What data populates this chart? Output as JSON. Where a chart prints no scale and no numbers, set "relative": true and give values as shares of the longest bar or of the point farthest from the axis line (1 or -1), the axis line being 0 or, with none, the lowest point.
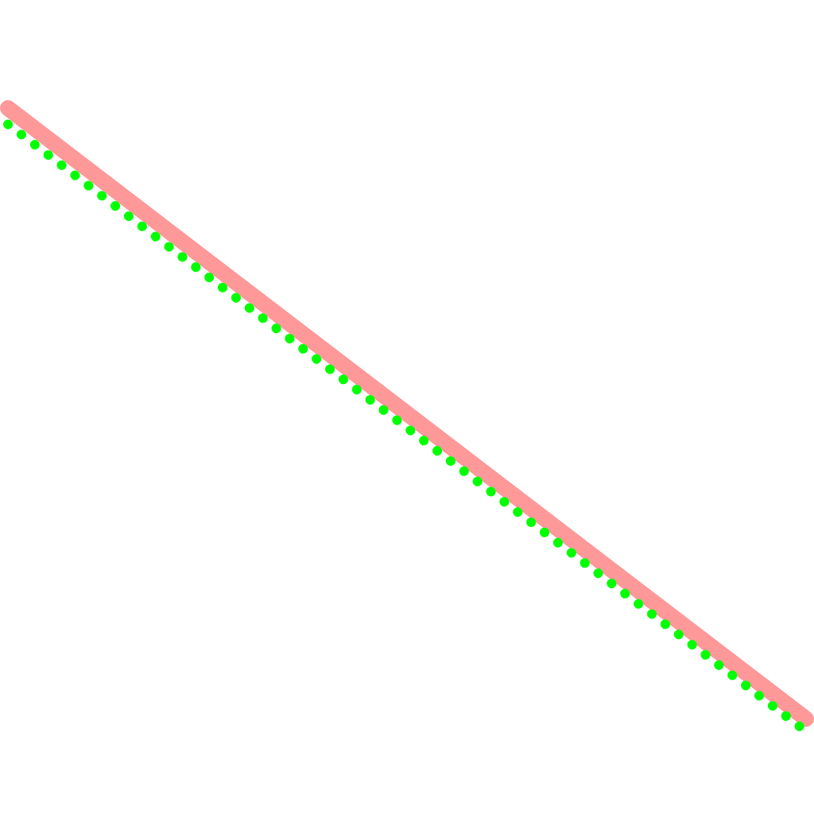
{
  "chart_data": {
    "type": "line",
    "relative": true,
    "categories": [
      null,
      null
    ],
    "legend": false,
    "series": [
      {
        "color": "#ff9999",
        "values": [
          1,
          0.02
        ],
        "line_style": "solid"
      },
      {
        "color": "#00ff00",
        "values": [
          0.974,
          0
        ],
        "line_style": "dotted"
      }
    ]
  }
}
